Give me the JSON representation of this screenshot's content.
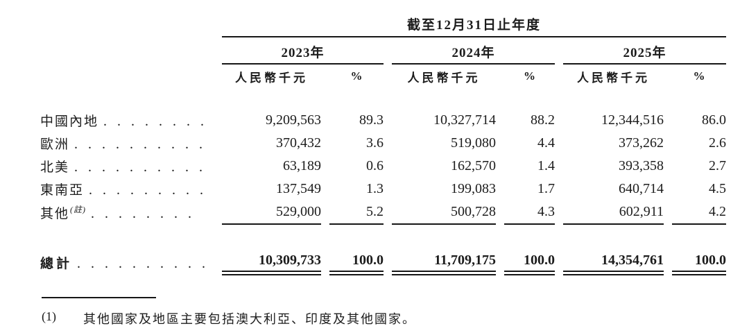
{
  "document": {
    "period_header": "截至12月31日止年度",
    "note_superscript": "(註)",
    "year_groups": [
      {
        "year": "2023年",
        "amount_header": "人民幣千元",
        "pct_header": "%"
      },
      {
        "year": "2024年",
        "amount_header": "人民幣千元",
        "pct_header": "%"
      },
      {
        "year": "2025年",
        "amount_header": "人民幣千元",
        "pct_header": "%"
      }
    ],
    "rows": [
      {
        "label": "中國內地",
        "leader": ". . . . . . . .",
        "amount_2023": "9,209,563",
        "pct_2023": "89.3",
        "amount_2024": "10,327,714",
        "pct_2024": "88.2",
        "amount_2025": "12,344,516",
        "pct_2025": "86.0"
      },
      {
        "label": "歐洲",
        "leader": ". . . . . . . . . .",
        "amount_2023": "370,432",
        "pct_2023": "3.6",
        "amount_2024": "519,080",
        "pct_2024": "4.4",
        "amount_2025": "373,262",
        "pct_2025": "2.6"
      },
      {
        "label": "北美",
        "leader": ". . . . . . . . . .",
        "amount_2023": "63,189",
        "pct_2023": "0.6",
        "amount_2024": "162,570",
        "pct_2024": "1.4",
        "amount_2025": "393,358",
        "pct_2025": "2.7"
      },
      {
        "label": "東南亞",
        "leader": ". . . . . . . . .",
        "amount_2023": "137,549",
        "pct_2023": "1.3",
        "amount_2024": "199,083",
        "pct_2024": "1.7",
        "amount_2025": "640,714",
        "pct_2025": "4.5"
      },
      {
        "label": "其他",
        "leader": ". . . . . . . .",
        "amount_2023": "529,000",
        "pct_2023": "5.2",
        "amount_2024": "500,728",
        "pct_2024": "4.3",
        "amount_2025": "602,911",
        "pct_2025": "4.2"
      }
    ],
    "total": {
      "label": "總計",
      "leader": ". . . . . . . . . .",
      "amount_2023": "10,309,733",
      "pct_2023": "100.0",
      "amount_2024": "11,709,175",
      "pct_2024": "100.0",
      "amount_2025": "14,354,761",
      "pct_2025": "100.0"
    },
    "footnote": {
      "marker": "(1)",
      "text": "其他國家及地區主要包括澳大利亞、印度及其他國家。"
    }
  }
}
